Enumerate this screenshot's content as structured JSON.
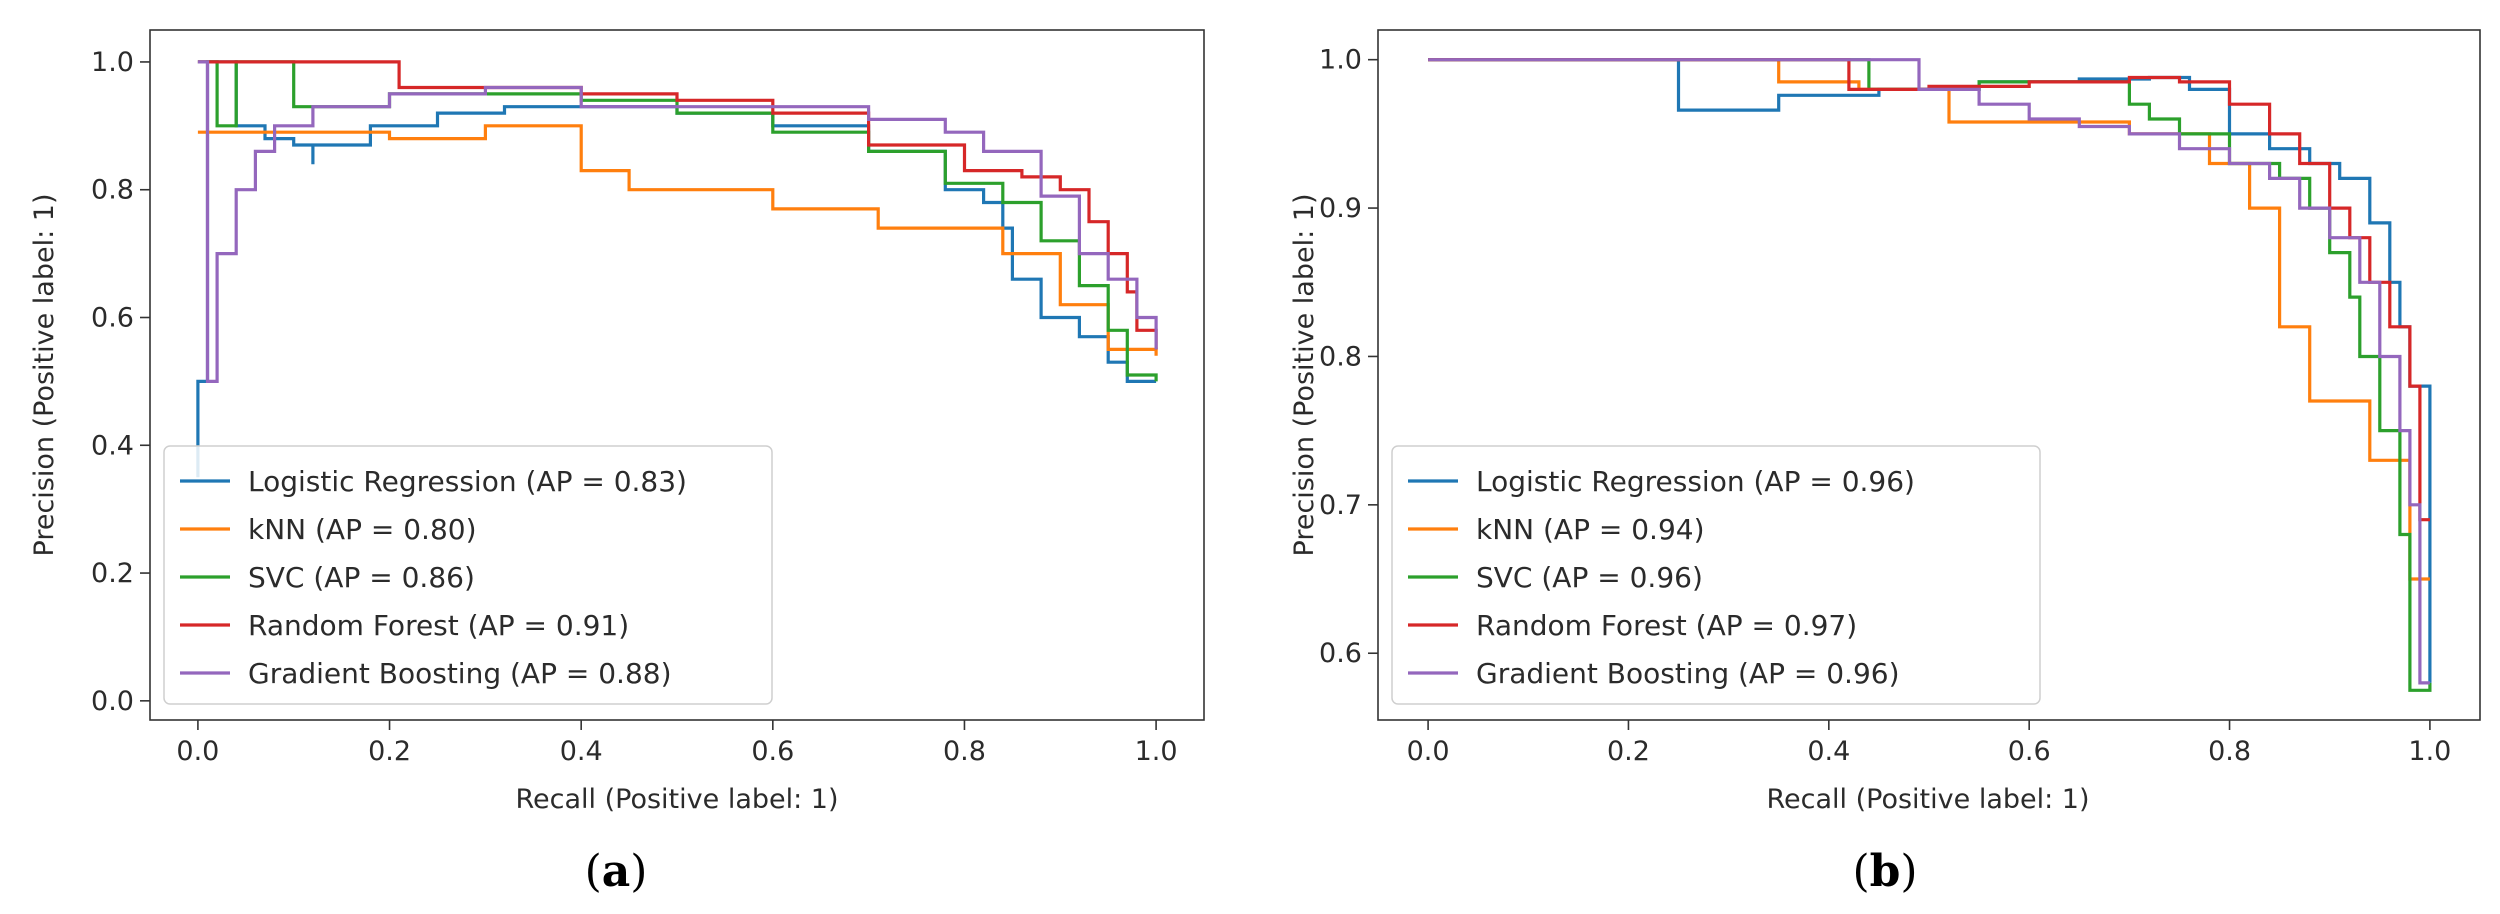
{
  "chart_data": [
    {
      "type": "line",
      "panel": "a",
      "caption": "(a)",
      "caption_letter": "a",
      "xlabel": "Recall (Positive label: 1)",
      "ylabel": "Precision (Positive label: 1)",
      "xlim": [
        -0.05,
        1.05
      ],
      "ylim": [
        -0.03,
        1.05
      ],
      "xticks": [
        0.0,
        0.2,
        0.4,
        0.6,
        0.8,
        1.0
      ],
      "yticks": [
        0.0,
        0.2,
        0.4,
        0.6,
        0.8,
        1.0
      ],
      "legend_position": "lower-left",
      "series": [
        {
          "name": "Logistic Regression (AP = 0.83)",
          "color": "#1f77b4",
          "x": [
            0.0,
            0.0,
            0.01,
            0.01,
            0.04,
            0.07,
            0.1,
            0.12,
            0.12,
            0.18,
            0.25,
            0.32,
            0.4,
            0.5,
            0.6,
            0.7,
            0.78,
            0.82,
            0.84,
            0.85,
            0.88,
            0.92,
            0.95,
            0.97,
            1.0
          ],
          "y": [
            0.35,
            0.5,
            0.5,
            1.0,
            0.9,
            0.88,
            0.87,
            0.84,
            0.87,
            0.9,
            0.92,
            0.93,
            0.93,
            0.92,
            0.9,
            0.86,
            0.8,
            0.78,
            0.74,
            0.66,
            0.6,
            0.57,
            0.53,
            0.5,
            0.5
          ]
        },
        {
          "name": "kNN (AP = 0.80)",
          "color": "#ff7f0e",
          "x": [
            0.0,
            0.2,
            0.2,
            0.3,
            0.3,
            0.4,
            0.4,
            0.45,
            0.45,
            0.6,
            0.6,
            0.71,
            0.71,
            0.84,
            0.84,
            0.9,
            0.9,
            0.95,
            0.95,
            1.0
          ],
          "y": [
            0.89,
            0.89,
            0.88,
            0.88,
            0.9,
            0.9,
            0.83,
            0.83,
            0.8,
            0.8,
            0.77,
            0.77,
            0.74,
            0.74,
            0.7,
            0.7,
            0.62,
            0.62,
            0.55,
            0.54
          ]
        },
        {
          "name": "SVC (AP = 0.86)",
          "color": "#2ca02c",
          "x": [
            0.0,
            0.02,
            0.02,
            0.04,
            0.04,
            0.1,
            0.2,
            0.3,
            0.4,
            0.5,
            0.6,
            0.7,
            0.78,
            0.84,
            0.88,
            0.92,
            0.95,
            0.97,
            1.0
          ],
          "y": [
            1.0,
            1.0,
            0.9,
            0.9,
            1.0,
            0.93,
            0.95,
            0.95,
            0.94,
            0.92,
            0.89,
            0.86,
            0.81,
            0.78,
            0.72,
            0.65,
            0.58,
            0.51,
            0.5
          ]
        },
        {
          "name": "Random Forest (AP = 0.91)",
          "color": "#d62728",
          "x": [
            0.0,
            0.21,
            0.21,
            0.3,
            0.4,
            0.5,
            0.6,
            0.7,
            0.8,
            0.86,
            0.9,
            0.93,
            0.95,
            0.97,
            0.98,
            1.0
          ],
          "y": [
            1.0,
            1.0,
            0.96,
            0.96,
            0.95,
            0.94,
            0.92,
            0.87,
            0.83,
            0.82,
            0.8,
            0.75,
            0.7,
            0.64,
            0.58,
            0.55
          ]
        },
        {
          "name": "Gradient Boosting (AP = 0.88)",
          "color": "#9467bd",
          "x": [
            0.0,
            0.01,
            0.01,
            0.02,
            0.04,
            0.06,
            0.08,
            0.12,
            0.2,
            0.3,
            0.4,
            0.5,
            0.6,
            0.7,
            0.78,
            0.82,
            0.88,
            0.92,
            0.95,
            0.98,
            1.0
          ],
          "y": [
            1.0,
            1.0,
            0.5,
            0.7,
            0.8,
            0.86,
            0.9,
            0.93,
            0.95,
            0.96,
            0.93,
            0.93,
            0.93,
            0.91,
            0.89,
            0.86,
            0.79,
            0.7,
            0.66,
            0.6,
            0.55
          ]
        }
      ],
      "legend": [
        "Logistic Regression (AP = 0.83)",
        "kNN (AP = 0.80)",
        "SVC (AP = 0.86)",
        "Random Forest (AP = 0.91)",
        "Gradient Boosting (AP = 0.88)"
      ]
    },
    {
      "type": "line",
      "panel": "b",
      "caption": "(b)",
      "caption_letter": "b",
      "xlabel": "Recall (Positive label: 1)",
      "ylabel": "Precision (Positive label: 1)",
      "xlim": [
        -0.05,
        1.05
      ],
      "ylim": [
        0.555,
        1.02
      ],
      "xticks": [
        0.0,
        0.2,
        0.4,
        0.6,
        0.8,
        1.0
      ],
      "yticks": [
        0.6,
        0.7,
        0.8,
        0.9,
        1.0
      ],
      "legend_position": "lower-left",
      "series": [
        {
          "name": "Logistic Regression (AP = 0.96)",
          "color": "#1f77b4",
          "x": [
            0.0,
            0.25,
            0.25,
            0.35,
            0.45,
            0.55,
            0.65,
            0.72,
            0.76,
            0.8,
            0.84,
            0.88,
            0.91,
            0.94,
            0.96,
            0.97,
            0.98,
            1.0
          ],
          "y": [
            1.0,
            1.0,
            0.966,
            0.976,
            0.98,
            0.985,
            0.987,
            0.988,
            0.98,
            0.95,
            0.94,
            0.93,
            0.92,
            0.89,
            0.85,
            0.82,
            0.78,
            0.58
          ]
        },
        {
          "name": "kNN (AP = 0.94)",
          "color": "#ff7f0e",
          "x": [
            0.0,
            0.35,
            0.35,
            0.43,
            0.43,
            0.52,
            0.52,
            0.7,
            0.7,
            0.78,
            0.78,
            0.82,
            0.82,
            0.85,
            0.85,
            0.88,
            0.88,
            0.94,
            0.94,
            0.98,
            0.98,
            1.0
          ],
          "y": [
            1.0,
            1.0,
            0.985,
            0.985,
            0.98,
            0.98,
            0.958,
            0.958,
            0.95,
            0.95,
            0.93,
            0.93,
            0.9,
            0.9,
            0.82,
            0.82,
            0.77,
            0.77,
            0.73,
            0.73,
            0.65,
            0.65
          ]
        },
        {
          "name": "SVC (AP = 0.96)",
          "color": "#2ca02c",
          "x": [
            0.0,
            0.44,
            0.44,
            0.55,
            0.65,
            0.7,
            0.72,
            0.75,
            0.8,
            0.85,
            0.88,
            0.9,
            0.92,
            0.93,
            0.95,
            0.97,
            0.98,
            1.0
          ],
          "y": [
            1.0,
            1.0,
            0.98,
            0.985,
            0.985,
            0.97,
            0.96,
            0.95,
            0.93,
            0.92,
            0.9,
            0.87,
            0.84,
            0.8,
            0.75,
            0.68,
            0.575,
            0.58
          ]
        },
        {
          "name": "Random Forest (AP = 0.97)",
          "color": "#d62728",
          "x": [
            0.0,
            0.42,
            0.42,
            0.5,
            0.6,
            0.7,
            0.75,
            0.8,
            0.84,
            0.87,
            0.9,
            0.92,
            0.94,
            0.96,
            0.98,
            0.99,
            0.99,
            1.0
          ],
          "y": [
            1.0,
            1.0,
            0.98,
            0.982,
            0.985,
            0.988,
            0.985,
            0.97,
            0.95,
            0.93,
            0.9,
            0.88,
            0.85,
            0.82,
            0.78,
            0.75,
            0.69,
            0.69
          ]
        },
        {
          "name": "Gradient Boosting (AP = 0.96)",
          "color": "#9467bd",
          "x": [
            0.0,
            0.49,
            0.49,
            0.55,
            0.6,
            0.65,
            0.7,
            0.75,
            0.8,
            0.84,
            0.87,
            0.9,
            0.93,
            0.95,
            0.97,
            0.98,
            0.99,
            1.0
          ],
          "y": [
            1.0,
            1.0,
            0.98,
            0.97,
            0.96,
            0.955,
            0.95,
            0.94,
            0.93,
            0.92,
            0.9,
            0.88,
            0.85,
            0.8,
            0.75,
            0.7,
            0.58,
            0.58
          ]
        }
      ],
      "legend": [
        "Logistic Regression (AP = 0.96)",
        "kNN (AP = 0.94)",
        "SVC (AP = 0.96)",
        "Random Forest (AP = 0.97)",
        "Gradient Boosting (AP = 0.96)"
      ]
    }
  ]
}
